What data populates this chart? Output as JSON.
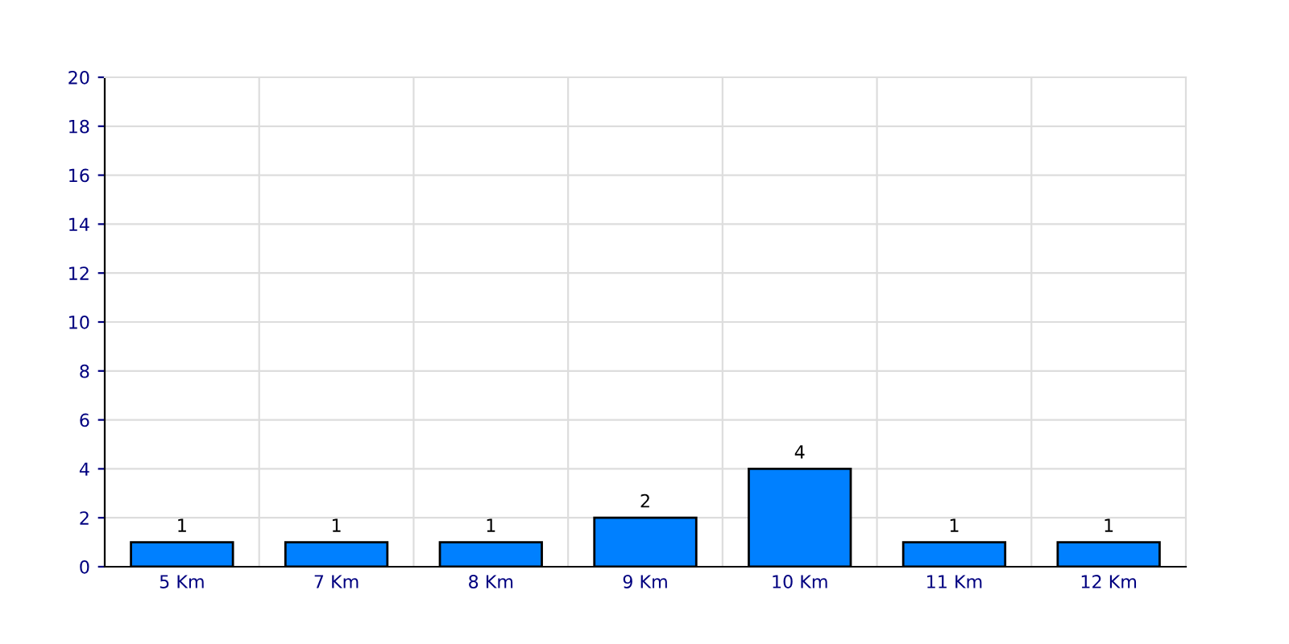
{
  "chart_data": {
    "type": "bar",
    "categories": [
      "5 Km",
      "7 Km",
      "8 Km",
      "9 Km",
      "10 Km",
      "11 Km",
      "12 Km"
    ],
    "values": [
      1,
      1,
      1,
      2,
      4,
      1,
      1
    ],
    "color": "#0080ff",
    "ylim": [
      0,
      20
    ],
    "yticks": [
      0,
      2,
      4,
      6,
      8,
      10,
      12,
      14,
      16,
      18,
      20
    ],
    "grid": true,
    "data_labels": true
  }
}
